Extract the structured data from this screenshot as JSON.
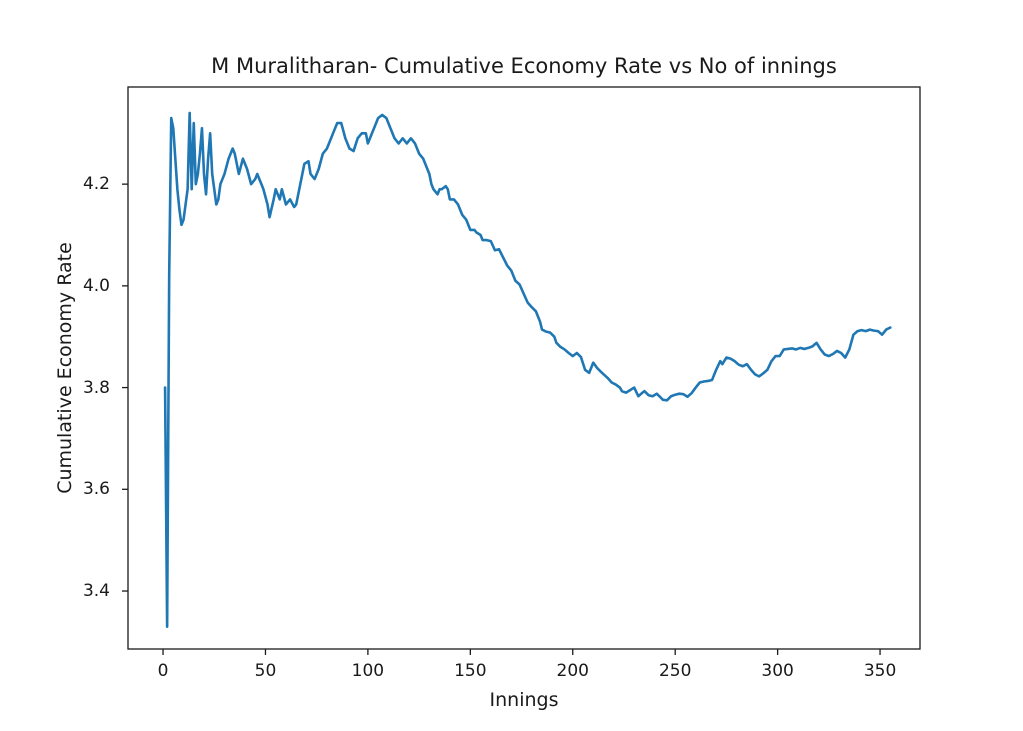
{
  "figure": {
    "background": "#ffffff"
  },
  "chart_data": {
    "type": "line",
    "title": "M Muralitharan- Cumulative Economy Rate vs No of innings",
    "xlabel": "Innings",
    "ylabel": "Cumulative Economy Rate",
    "legend": null,
    "grid": false,
    "line_color": "#1f77b4",
    "line_width": 2.6,
    "axes_color": "#1a1a1a",
    "text_color": "#1a1a1a",
    "xlim": [
      -17.1,
      369.5
    ],
    "ylim": [
      3.286,
      4.391
    ],
    "xticks": [
      0,
      50,
      100,
      150,
      200,
      250,
      300,
      350
    ],
    "yticks": [
      3.4,
      3.6,
      3.8,
      4.0,
      4.2
    ],
    "x": [
      1,
      2,
      3,
      4,
      5,
      6,
      7,
      8,
      9,
      10,
      11,
      12,
      13,
      14,
      15,
      16,
      17,
      18,
      19,
      20,
      21,
      22,
      23,
      24,
      25,
      26,
      27,
      28,
      29,
      30,
      32,
      34,
      35,
      36,
      37,
      39,
      41,
      43,
      45,
      46,
      48,
      49,
      51,
      52,
      54,
      55,
      57,
      58,
      60,
      62,
      64,
      65,
      67,
      69,
      71,
      72,
      74,
      76,
      78,
      80,
      82,
      84,
      85,
      87,
      89,
      91,
      93,
      95,
      97,
      99,
      100,
      102,
      104,
      105,
      107,
      109,
      111,
      113,
      115,
      117,
      119,
      121,
      123,
      125,
      127,
      129,
      130,
      131,
      132,
      134,
      135,
      136,
      138,
      139,
      140,
      142,
      144,
      146,
      148,
      150,
      152,
      153,
      155,
      156,
      158,
      160,
      162,
      164,
      166,
      168,
      170,
      172,
      174,
      176,
      178,
      180,
      182,
      184,
      185,
      187,
      189,
      191,
      192,
      194,
      196,
      198,
      200,
      202,
      204,
      206,
      208,
      210,
      212,
      214,
      217,
      219,
      221,
      223,
      224,
      226,
      228,
      230,
      232,
      234,
      235,
      237,
      239,
      241,
      243,
      244,
      246,
      248,
      250,
      252,
      254,
      256,
      258,
      260,
      262,
      264,
      266,
      268,
      270,
      272,
      273,
      275,
      277,
      279,
      281,
      283,
      285,
      287,
      289,
      291,
      293,
      295,
      297,
      299,
      301,
      303,
      305,
      307,
      309,
      311,
      313,
      315,
      317,
      319,
      321,
      323,
      325,
      327,
      329,
      331,
      333,
      335,
      337,
      339,
      341,
      343,
      345,
      347,
      349,
      351,
      353,
      355
    ],
    "y": [
      3.8,
      3.33,
      4.02,
      4.33,
      4.31,
      4.25,
      4.19,
      4.15,
      4.12,
      4.13,
      4.16,
      4.19,
      4.34,
      4.19,
      4.32,
      4.2,
      4.22,
      4.26,
      4.31,
      4.22,
      4.18,
      4.25,
      4.3,
      4.22,
      4.19,
      4.16,
      4.17,
      4.2,
      4.21,
      4.22,
      4.25,
      4.27,
      4.26,
      4.24,
      4.22,
      4.25,
      4.23,
      4.2,
      4.21,
      4.22,
      4.2,
      4.19,
      4.16,
      4.135,
      4.17,
      4.19,
      4.17,
      4.19,
      4.16,
      4.17,
      4.155,
      4.16,
      4.2,
      4.24,
      4.245,
      4.22,
      4.21,
      4.23,
      4.26,
      4.27,
      4.29,
      4.31,
      4.32,
      4.32,
      4.29,
      4.27,
      4.265,
      4.29,
      4.3,
      4.3,
      4.28,
      4.3,
      4.32,
      4.33,
      4.336,
      4.33,
      4.31,
      4.29,
      4.28,
      4.29,
      4.28,
      4.29,
      4.28,
      4.26,
      4.25,
      4.23,
      4.22,
      4.2,
      4.19,
      4.18,
      4.19,
      4.19,
      4.196,
      4.19,
      4.17,
      4.17,
      4.16,
      4.14,
      4.13,
      4.11,
      4.11,
      4.105,
      4.1,
      4.09,
      4.09,
      4.088,
      4.07,
      4.072,
      4.056,
      4.04,
      4.03,
      4.01,
      4.003,
      3.985,
      3.967,
      3.958,
      3.95,
      3.93,
      3.914,
      3.91,
      3.908,
      3.9,
      3.888,
      3.88,
      3.875,
      3.868,
      3.862,
      3.868,
      3.86,
      3.835,
      3.829,
      3.849,
      3.838,
      3.83,
      3.819,
      3.81,
      3.806,
      3.8,
      3.793,
      3.79,
      3.795,
      3.8,
      3.783,
      3.79,
      3.793,
      3.785,
      3.783,
      3.788,
      3.78,
      3.776,
      3.775,
      3.783,
      3.786,
      3.788,
      3.787,
      3.782,
      3.789,
      3.8,
      3.81,
      3.812,
      3.813,
      3.815,
      3.835,
      3.852,
      3.846,
      3.859,
      3.857,
      3.852,
      3.845,
      3.842,
      3.846,
      3.835,
      3.826,
      3.822,
      3.828,
      3.835,
      3.852,
      3.862,
      3.862,
      3.875,
      3.876,
      3.877,
      3.875,
      3.878,
      3.876,
      3.878,
      3.881,
      3.888,
      3.875,
      3.865,
      3.862,
      3.866,
      3.872,
      3.868,
      3.859,
      3.875,
      3.904,
      3.911,
      3.913,
      3.911,
      3.914,
      3.912,
      3.911,
      3.904,
      3.914,
      3.918
    ]
  }
}
